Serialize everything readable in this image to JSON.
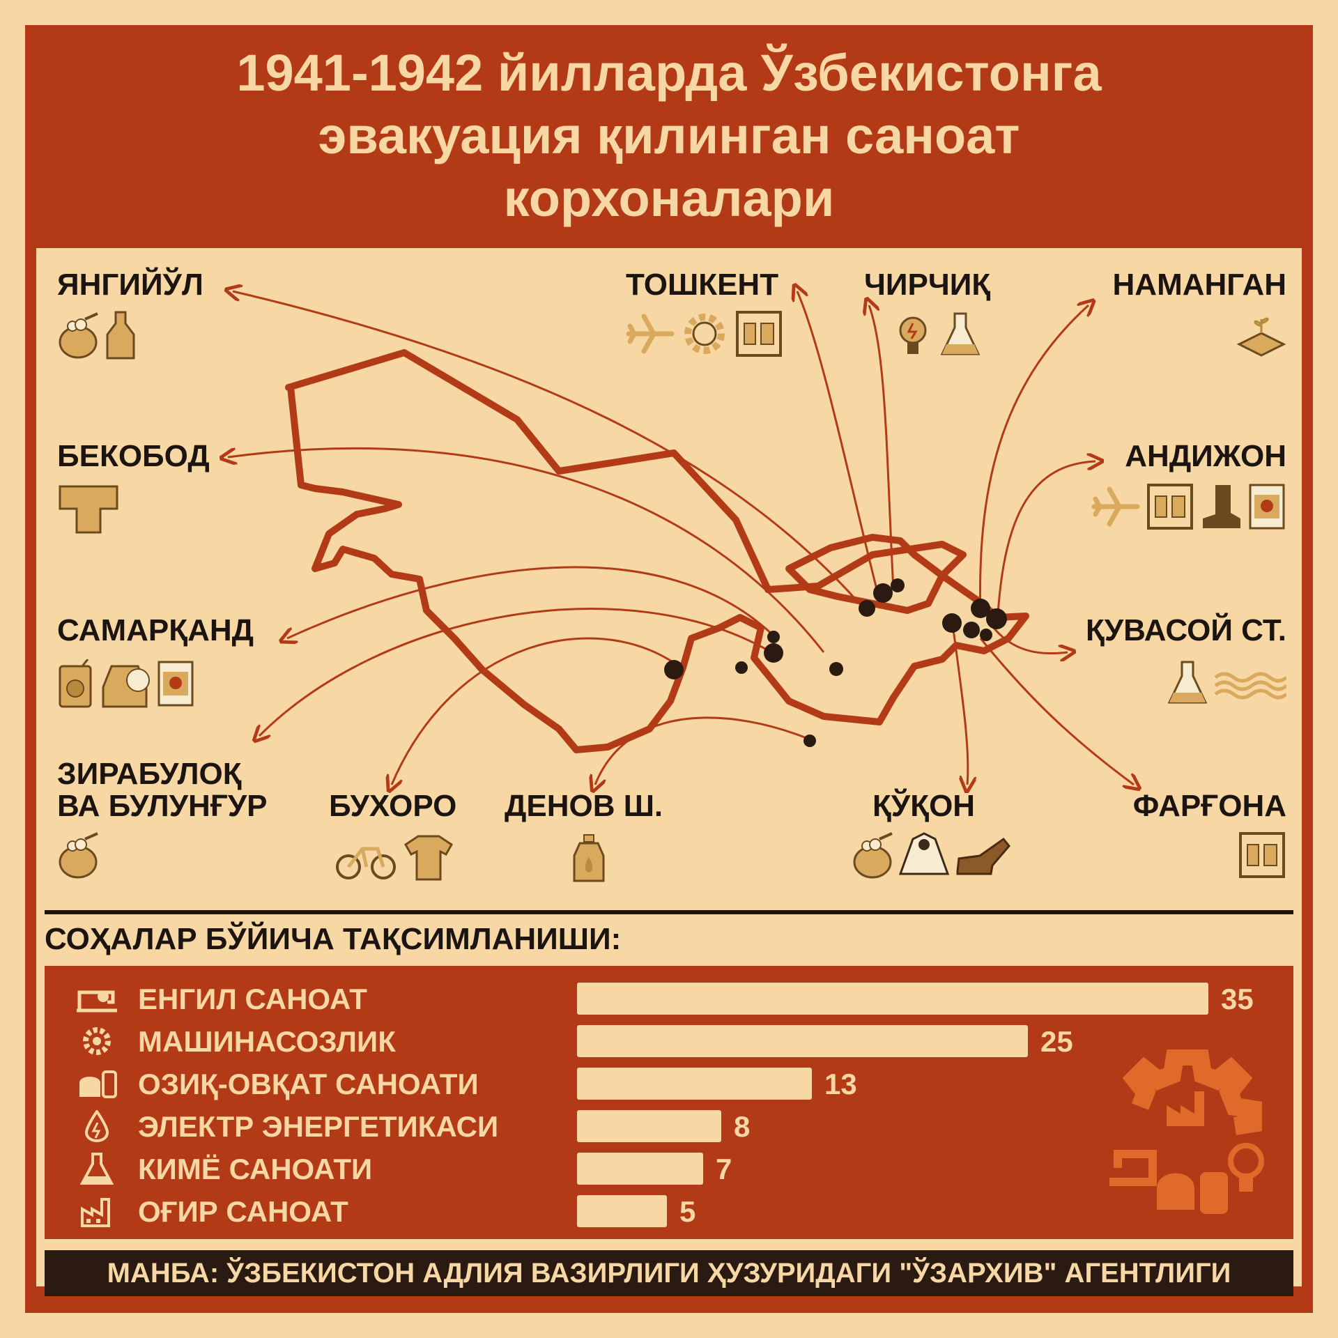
{
  "title": "1941-1942 йилларда Ўзбекистонга\nэвакуация қилинган саноат\nкорхоналари",
  "colors": {
    "background": "#f7d8a4",
    "accent": "#b33a17",
    "dark": "#1c1410",
    "icon": "#d9a95e"
  },
  "cities": [
    {
      "name": "ЯНГИЙЎЛ",
      "icons": [
        "food-sack-icon",
        "bottle-icon"
      ]
    },
    {
      "name": "БЕКОБОД",
      "icons": [
        "pipe-tee-icon"
      ]
    },
    {
      "name": "САМАРҚАНД",
      "icons": [
        "juice-icon",
        "tea-icon",
        "canned-meat-icon"
      ]
    },
    {
      "name": "ЗИРАБУЛОҚ\nВА БУЛУНҒУР",
      "icons": [
        "food-sack-icon"
      ]
    },
    {
      "name": "БУХОРО",
      "icons": [
        "bicycle-icon",
        "shirt-icon"
      ]
    },
    {
      "name": "ДЕНОВ Ш.",
      "icons": [
        "oil-jar-icon"
      ]
    },
    {
      "name": "ТОШКЕНТ",
      "icons": [
        "airplane-icon",
        "gear-icon",
        "clothes-rack-icon"
      ]
    },
    {
      "name": "ЧИРЧИҚ",
      "icons": [
        "light-bulb-icon",
        "flask-icon"
      ]
    },
    {
      "name": "НАМАНГАН",
      "icons": [
        "seedling-icon"
      ]
    },
    {
      "name": "АНДИЖОН",
      "icons": [
        "airplane-icon",
        "clothes-rack-icon",
        "boot-icon",
        "canned-meat-icon"
      ]
    },
    {
      "name": "ҚУВАСОЙ СТ.",
      "icons": [
        "flask-icon",
        "waves-icon"
      ]
    },
    {
      "name": "ҚЎҚОН",
      "icons": [
        "food-sack-icon",
        "raincoat-icon",
        "shoe-icon"
      ]
    },
    {
      "name": "ФАРҒОНА",
      "icons": [
        "clothes-rack-icon"
      ]
    }
  ],
  "section_title": "СОҲАЛАР БЎЙИЧА ТАҚСИМЛАНИШИ:",
  "chart_data": {
    "type": "bar",
    "orientation": "horizontal",
    "categories": [
      "ЕНГИЛ САНОАТ",
      "МАШИНАСОЗЛИК",
      "ОЗИҚ-ОВҚАТ САНОАТИ",
      "ЭЛЕКТР ЭНЕРГЕТИКАСИ",
      "КИМЁ САНОАТИ",
      "ОҒИР САНОАТ"
    ],
    "icons": [
      "sewing-machine-icon",
      "gear-icon",
      "bread-icon",
      "energy-drop-icon",
      "chemistry-flask-icon",
      "factory-icon"
    ],
    "values": [
      35,
      25,
      13,
      8,
      7,
      5
    ],
    "xlim": [
      0,
      35
    ]
  },
  "source": "МАНБА: ЎЗБЕКИСТОН АДЛИЯ ВАЗИРЛИГИ ҲУЗУРИДАГИ \"ЎЗАРХИВ\" АГЕНТЛИГИ"
}
